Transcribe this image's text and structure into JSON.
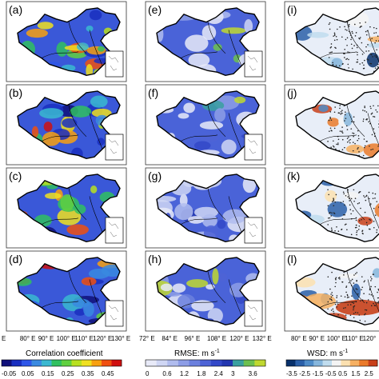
{
  "panels": [
    {
      "label": "(a)",
      "column": "correlation",
      "row": 0
    },
    {
      "label": "(b)",
      "column": "correlation",
      "row": 1
    },
    {
      "label": "(c)",
      "column": "correlation",
      "row": 2
    },
    {
      "label": "(d)",
      "column": "correlation",
      "row": 3
    },
    {
      "label": "(e)",
      "column": "rmse",
      "row": 0
    },
    {
      "label": "(f)",
      "column": "rmse",
      "row": 1
    },
    {
      "label": "(g)",
      "column": "rmse",
      "row": 2
    },
    {
      "label": "(h)",
      "column": "rmse",
      "row": 3
    },
    {
      "label": "(i)",
      "column": "wsd",
      "row": 0
    },
    {
      "label": "(j)",
      "column": "wsd",
      "row": 1
    },
    {
      "label": "(k)",
      "column": "wsd",
      "row": 2
    },
    {
      "label": "(l)",
      "column": "wsd",
      "row": 3
    }
  ],
  "axes": {
    "left_lon_ticks": [
      "E",
      "80° E",
      "90° E",
      "100° E",
      "110° E",
      "120° E",
      "130° E"
    ],
    "mid_lon_ticks": [
      "72° E",
      "84° E",
      "96° E",
      "108° E",
      "120° E",
      "132° E"
    ],
    "right_lon_ticks": [
      "80° E",
      "90° E",
      "100° E",
      "110° E",
      "120°"
    ]
  },
  "colorbars": {
    "correlation": {
      "title": "Correlation coefficient",
      "ticks": [
        "-0.05",
        "0.05",
        "0.15",
        "0.25",
        "0.35",
        "0.45"
      ],
      "colors": [
        "#10107a",
        "#1a2fc0",
        "#2f56e8",
        "#3a8ae0",
        "#3ab8d0",
        "#30c060",
        "#60d040",
        "#b8e020",
        "#f0e020",
        "#f8a010",
        "#f05010",
        "#d01010"
      ]
    },
    "rmse": {
      "title": "RMSE: m s",
      "unit_sup": "-1",
      "ticks": [
        "0",
        "0.6",
        "1.2",
        "1.8",
        "2.4",
        "3",
        "3.6"
      ],
      "colors": [
        "#e8eaf8",
        "#cfd6f4",
        "#b0bcee",
        "#8d9de6",
        "#6b80de",
        "#4d63d6",
        "#3348c8",
        "#2236b0",
        "#3aa0a0",
        "#6cc050",
        "#c0d830"
      ]
    },
    "wsd": {
      "title": "WSD: m s",
      "unit_sup": "-1",
      "ticks": [
        "-3.5",
        "-2.5",
        "-1.5",
        "-0.5",
        "0.5",
        "1.5",
        "2.5"
      ],
      "colors": [
        "#08306b",
        "#2a5fa8",
        "#4f8cc8",
        "#86b6dc",
        "#c0dcee",
        "#f4f4f4",
        "#fbe0b0",
        "#f6b062",
        "#ea7a2a",
        "#c8401a"
      ]
    }
  },
  "colors": {
    "correlation_base": "#3a58d8",
    "rmse_base": "#4a63d8",
    "wsd_base": "#e8eef8",
    "border": "#000000",
    "station_dot": "#222222"
  }
}
